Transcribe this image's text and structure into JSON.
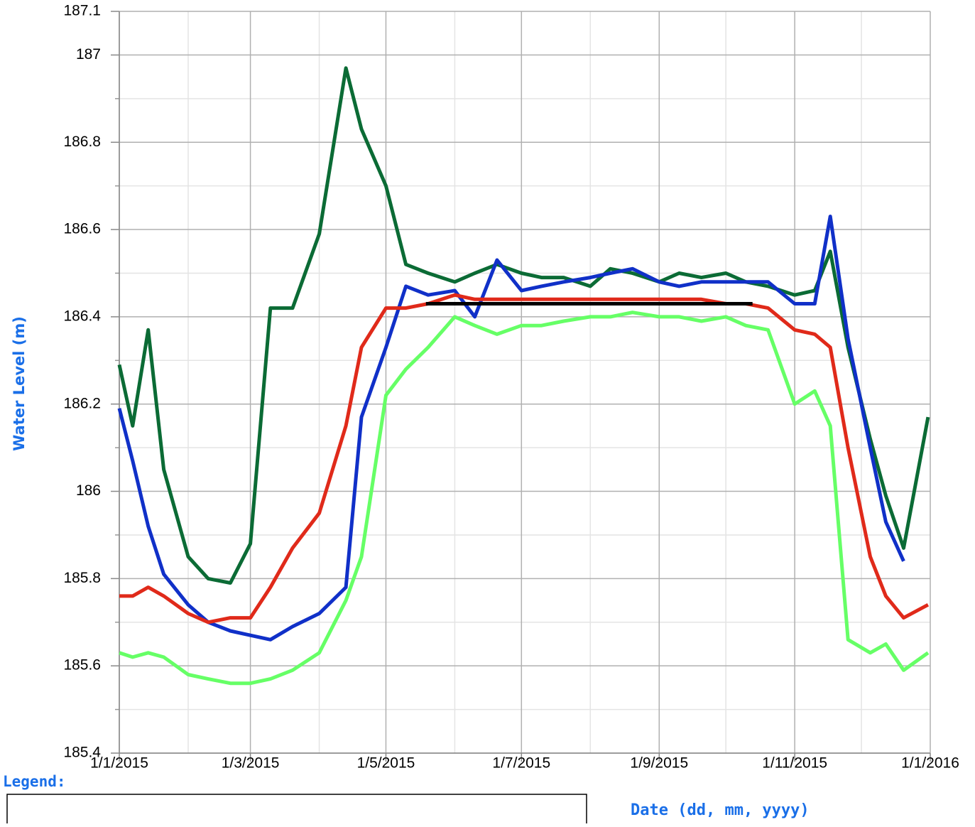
{
  "chart_data": {
    "type": "line",
    "y_label": "Water Level (m)",
    "x_label": "Date (dd, mm, yyyy)",
    "legend_heading": "Legend:",
    "x": [
      "2015-01-01",
      "2015-01-07",
      "2015-01-14",
      "2015-01-21",
      "2015-02-01",
      "2015-02-10",
      "2015-02-20",
      "2015-03-01",
      "2015-03-10",
      "2015-03-20",
      "2015-04-01",
      "2015-04-13",
      "2015-04-20",
      "2015-05-01",
      "2015-05-10",
      "2015-05-20",
      "2015-06-01",
      "2015-06-10",
      "2015-06-20",
      "2015-07-01",
      "2015-07-10",
      "2015-07-20",
      "2015-08-01",
      "2015-08-10",
      "2015-08-20",
      "2015-09-01",
      "2015-09-10",
      "2015-09-20",
      "2015-10-01",
      "2015-10-10",
      "2015-10-20",
      "2015-11-01",
      "2015-11-10",
      "2015-11-17",
      "2015-11-25",
      "2015-12-05",
      "2015-12-12",
      "2015-12-20",
      "2015-12-31"
    ],
    "series": [
      {
        "color": "#0b6b35",
        "values": [
          186.29,
          186.15,
          186.37,
          186.05,
          185.85,
          185.8,
          185.79,
          185.88,
          186.42,
          186.42,
          186.59,
          186.97,
          186.83,
          186.7,
          186.52,
          186.5,
          186.48,
          186.5,
          186.52,
          186.5,
          186.49,
          186.49,
          186.47,
          186.51,
          186.5,
          186.48,
          186.5,
          186.49,
          186.5,
          186.48,
          186.47,
          186.45,
          186.46,
          186.55,
          186.33,
          186.12,
          185.99,
          185.87,
          186.17
        ]
      },
      {
        "color": "#1030c8",
        "values": [
          186.19,
          186.07,
          185.92,
          185.81,
          185.74,
          185.7,
          185.68,
          185.67,
          185.66,
          185.69,
          185.72,
          185.78,
          186.17,
          186.33,
          186.47,
          186.45,
          186.46,
          186.4,
          186.53,
          186.46,
          186.47,
          186.48,
          186.49,
          186.5,
          186.51,
          186.48,
          186.47,
          186.48,
          186.48,
          186.48,
          186.48,
          186.43,
          186.43,
          186.63,
          186.35,
          186.1,
          185.93,
          185.84,
          null
        ]
      },
      {
        "color": "#e02a1a",
        "values": [
          185.76,
          185.76,
          185.78,
          185.76,
          185.72,
          185.7,
          185.71,
          185.71,
          185.78,
          185.87,
          185.95,
          186.15,
          186.33,
          186.42,
          186.42,
          186.43,
          186.45,
          186.44,
          186.44,
          186.44,
          186.44,
          186.44,
          186.44,
          186.44,
          186.44,
          186.44,
          186.44,
          186.44,
          186.43,
          186.43,
          186.42,
          186.37,
          186.36,
          186.33,
          186.1,
          185.85,
          185.76,
          185.71,
          185.74
        ]
      },
      {
        "color": "#66ff66",
        "values": [
          185.63,
          185.62,
          185.63,
          185.62,
          185.58,
          185.57,
          185.56,
          185.56,
          185.57,
          185.59,
          185.63,
          185.75,
          185.85,
          186.22,
          186.28,
          186.33,
          186.4,
          186.38,
          186.36,
          186.38,
          186.38,
          186.39,
          186.4,
          186.4,
          186.41,
          186.4,
          186.4,
          186.39,
          186.4,
          186.38,
          186.37,
          186.2,
          186.23,
          186.15,
          185.66,
          185.63,
          185.65,
          185.59,
          185.63
        ]
      },
      {
        "color": "#000000",
        "x": [
          "2015-05-19",
          "2015-10-13"
        ],
        "values": [
          186.43,
          186.43
        ]
      }
    ],
    "xlim": [
      "2015-01-01",
      "2016-01-01"
    ],
    "xticks": [
      {
        "value": "2015-01-01",
        "label": "1/1/2015"
      },
      {
        "value": "2015-03-01",
        "label": "1/3/2015"
      },
      {
        "value": "2015-05-01",
        "label": "1/5/2015"
      },
      {
        "value": "2015-07-01",
        "label": "1/7/2015"
      },
      {
        "value": "2015-09-01",
        "label": "1/9/2015"
      },
      {
        "value": "2015-11-01",
        "label": "1/11/2015"
      },
      {
        "value": "2016-01-01",
        "label": "1/1/2016"
      }
    ],
    "minor_xticks": [
      "2015-02-01",
      "2015-04-01",
      "2015-06-01",
      "2015-08-01",
      "2015-10-01",
      "2015-12-01"
    ],
    "ylim": [
      185.4,
      187.1
    ],
    "yticks": [
      185.4,
      185.6,
      185.8,
      186,
      186.2,
      186.4,
      186.6,
      186.8,
      187,
      187.1
    ],
    "minor_yticks": [
      185.5,
      185.7,
      185.9,
      186.1,
      186.3,
      186.5,
      186.7,
      186.9
    ],
    "grid": true
  }
}
